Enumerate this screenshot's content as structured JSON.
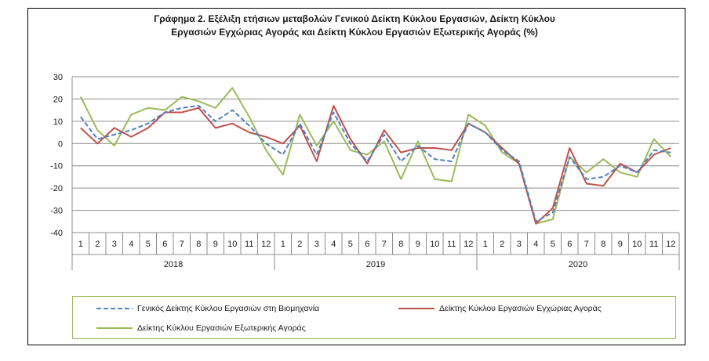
{
  "title_line1": "Γράφημα 2. Εξέλιξη ετήσιων μεταβολών Γενικού Δείκτη Κύκλου Εργασιών,  Δείκτη Κύκλου",
  "title_line2": "Εργασιών Εγχώριας Αγοράς και Δείκτη Κύκλου Εργασιών Εξωτερικής Αγοράς (%)",
  "colors": {
    "general": "#4f81bd",
    "domestic": "#c0504d",
    "foreign": "#9bbb59"
  },
  "chart_data": {
    "type": "line",
    "title": "Γράφημα 2. Εξέλιξη ετήσιων μεταβολών Γενικού Δείκτη Κύκλου Εργασιών,  Δείκτη Κύκλου Εργασιών Εγχώριας Αγοράς και Δείκτη Κύκλου Εργασιών Εξωτερικής Αγοράς (%)",
    "ylim": [
      -40,
      30
    ],
    "yticks": [
      30,
      20,
      10,
      0,
      -10,
      -20,
      -30,
      -40
    ],
    "grid": true,
    "legend_position": "bottom",
    "months": [
      "1",
      "2",
      "3",
      "4",
      "5",
      "6",
      "7",
      "8",
      "9",
      "10",
      "11",
      "12",
      "1",
      "2",
      "3",
      "4",
      "5",
      "6",
      "7",
      "8",
      "9",
      "10",
      "11",
      "12",
      "1",
      "2",
      "3",
      "4",
      "5",
      "6",
      "7",
      "8",
      "9",
      "10",
      "11",
      "12"
    ],
    "years": [
      "2018",
      "2019",
      "2020"
    ],
    "series": [
      {
        "name": "Γενικός Δείκτης Κύκλου Εργασιών στη Βιομηχανία",
        "style": "dashed",
        "values": [
          12,
          2,
          4,
          6,
          9,
          14,
          16,
          17,
          10,
          15,
          8,
          0,
          -5,
          9,
          -5,
          14,
          0,
          -8,
          4,
          -8,
          -1,
          -7,
          -8,
          9,
          5,
          -3,
          -8,
          -35,
          -31,
          -6,
          -16,
          -15,
          -10,
          -13,
          -3,
          -4
        ]
      },
      {
        "name": "Δείκτης Κύκλου Εργασιών Εγχώριας Αγοράς",
        "style": "solid",
        "values": [
          7,
          0,
          7,
          3,
          7,
          14,
          14,
          16,
          7,
          9,
          5,
          3,
          0,
          8,
          -8,
          17,
          2,
          -9,
          6,
          -4,
          -2,
          -2,
          -3,
          9,
          5,
          -2,
          -9,
          -36,
          -29,
          -2,
          -18,
          -19,
          -9,
          -13,
          -5,
          -2
        ]
      },
      {
        "name": "Δείκτης Κύκλου Εργασιών Εξωτερικής Αγοράς",
        "style": "solid",
        "values": [
          21,
          6,
          -1,
          13,
          16,
          15,
          21,
          19,
          16,
          25,
          12,
          -3,
          -14,
          13,
          -1,
          10,
          -3,
          -5,
          1,
          -16,
          1,
          -16,
          -17,
          13,
          8,
          -4,
          -9,
          -36,
          -34,
          -6,
          -13,
          -7,
          -13,
          -15,
          2,
          -6
        ]
      }
    ]
  }
}
